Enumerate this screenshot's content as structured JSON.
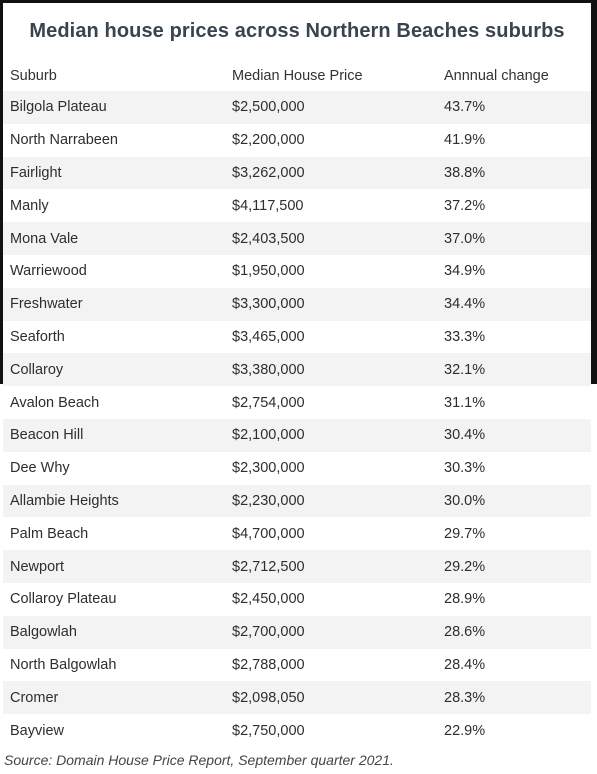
{
  "title": "Median house prices across Northern Beaches suburbs",
  "headers": {
    "suburb": "Suburb",
    "price": "Median House Price",
    "change": "Annnual change"
  },
  "rows": [
    {
      "suburb": "Bilgola Plateau",
      "price": "$2,500,000",
      "change": "43.7%"
    },
    {
      "suburb": "North Narrabeen",
      "price": "$2,200,000",
      "change": "41.9%"
    },
    {
      "suburb": "Fairlight",
      "price": "$3,262,000",
      "change": "38.8%"
    },
    {
      "suburb": "Manly",
      "price": "$4,117,500",
      "change": "37.2%"
    },
    {
      "suburb": "Mona Vale",
      "price": "$2,403,500",
      "change": "37.0%"
    },
    {
      "suburb": "Warriewood",
      "price": "$1,950,000",
      "change": "34.9%"
    },
    {
      "suburb": "Freshwater",
      "price": "$3,300,000",
      "change": "34.4%"
    },
    {
      "suburb": "Seaforth",
      "price": "$3,465,000",
      "change": "33.3%"
    },
    {
      "suburb": "Collaroy",
      "price": "$3,380,000",
      "change": "32.1%"
    },
    {
      "suburb": "Avalon Beach",
      "price": "$2,754,000",
      "change": "31.1%"
    },
    {
      "suburb": "Beacon Hill",
      "price": "$2,100,000",
      "change": "30.4%"
    },
    {
      "suburb": "Dee Why",
      "price": "$2,300,000",
      "change": "30.3%"
    },
    {
      "suburb": "Allambie Heights",
      "price": "$2,230,000",
      "change": "30.0%"
    },
    {
      "suburb": "Palm Beach",
      "price": "$4,700,000",
      "change": "29.7%"
    },
    {
      "suburb": "Newport",
      "price": "$2,712,500",
      "change": "29.2%"
    },
    {
      "suburb": "Collaroy Plateau",
      "price": "$2,450,000",
      "change": "28.9%"
    },
    {
      "suburb": "Balgowlah",
      "price": "$2,700,000",
      "change": "28.6%"
    },
    {
      "suburb": "North Balgowlah",
      "price": "$2,788,000",
      "change": "28.4%"
    },
    {
      "suburb": "Cromer",
      "price": "$2,098,050",
      "change": "28.3%"
    },
    {
      "suburb": "Bayview",
      "price": "$2,750,000",
      "change": "22.9%"
    }
  ],
  "source": "Source: Domain House Price Report, September quarter 2021.",
  "colors": {
    "title": "#3a4350",
    "stripe": "#f3f3f3",
    "frame": "#111111"
  }
}
